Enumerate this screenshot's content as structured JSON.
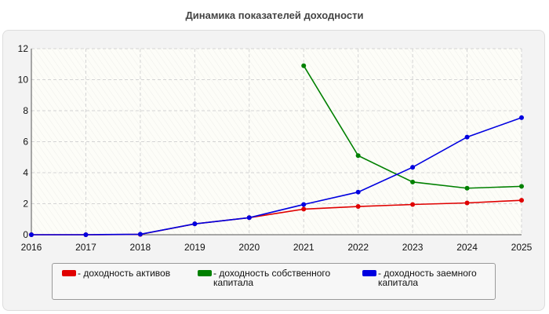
{
  "chart_data": {
    "type": "line",
    "title": "Динамика показателей доходности",
    "xlabel": "",
    "ylabel": "",
    "x": [
      "2016",
      "2017",
      "2018",
      "2019",
      "2020",
      "2021",
      "2022",
      "2023",
      "2024",
      "2025"
    ],
    "ylim": [
      0,
      12
    ],
    "yticks": [
      "0",
      "2",
      "4",
      "6",
      "8",
      "10",
      "12"
    ],
    "grid": true,
    "legend_position": "bottom",
    "series": [
      {
        "name": "- доходность активов",
        "color": "#e00000",
        "values": [
          0,
          0,
          0.02,
          0.7,
          1.1,
          1.65,
          1.82,
          1.95,
          2.05,
          2.22
        ]
      },
      {
        "name": "- доходность собственного капитала",
        "color": "#008000",
        "values": [
          null,
          null,
          null,
          null,
          null,
          10.9,
          5.1,
          3.4,
          3.0,
          3.12
        ]
      },
      {
        "name": "- доходность заемного капитала",
        "color": "#0000e0",
        "values": [
          0,
          0,
          0.03,
          0.7,
          1.1,
          1.95,
          2.75,
          4.35,
          6.3,
          7.55
        ]
      }
    ]
  }
}
